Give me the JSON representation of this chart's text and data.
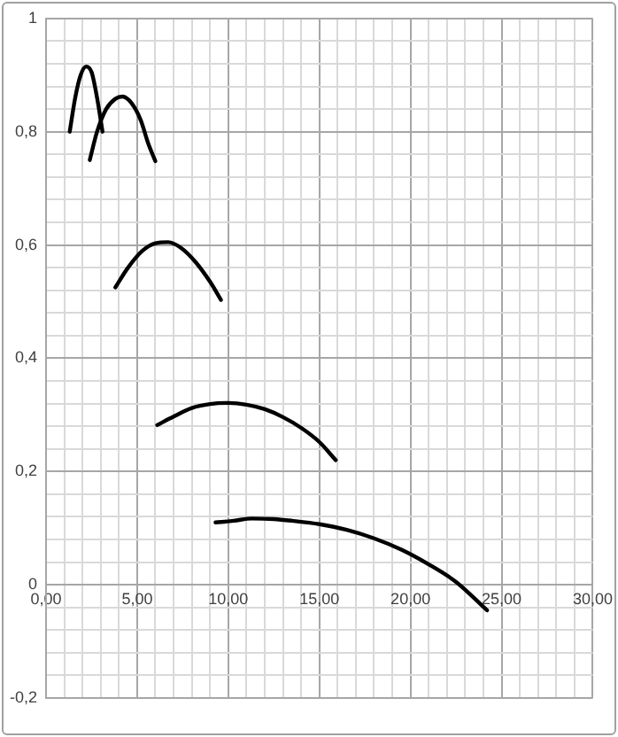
{
  "chart_data": {
    "type": "line",
    "marker": "none",
    "line_style": "solid",
    "grid": true,
    "legend": false,
    "xlim": [
      0,
      30
    ],
    "ylim": [
      -0.2,
      1
    ],
    "xticks": [
      {
        "value": 0,
        "label": "0,00"
      },
      {
        "value": 1,
        "label": null
      },
      {
        "value": 2,
        "label": null
      },
      {
        "value": 3,
        "label": null
      },
      {
        "value": 4,
        "label": null
      },
      {
        "value": 5,
        "label": "5,00"
      },
      {
        "value": 6,
        "label": null
      },
      {
        "value": 7,
        "label": null
      },
      {
        "value": 8,
        "label": null
      },
      {
        "value": 9,
        "label": null
      },
      {
        "value": 10,
        "label": "10,00"
      },
      {
        "value": 11,
        "label": null
      },
      {
        "value": 12,
        "label": null
      },
      {
        "value": 13,
        "label": null
      },
      {
        "value": 14,
        "label": null
      },
      {
        "value": 15,
        "label": "15,00"
      },
      {
        "value": 16,
        "label": null
      },
      {
        "value": 17,
        "label": null
      },
      {
        "value": 18,
        "label": null
      },
      {
        "value": 19,
        "label": null
      },
      {
        "value": 20,
        "label": "20,00"
      },
      {
        "value": 21,
        "label": null
      },
      {
        "value": 22,
        "label": null
      },
      {
        "value": 23,
        "label": null
      },
      {
        "value": 24,
        "label": null
      },
      {
        "value": 25,
        "label": "25,00"
      },
      {
        "value": 26,
        "label": null
      },
      {
        "value": 27,
        "label": null
      },
      {
        "value": 28,
        "label": null
      },
      {
        "value": 29,
        "label": null
      },
      {
        "value": 30,
        "label": "30,00"
      }
    ],
    "yticks": [
      {
        "value": -0.2,
        "label": "-0,2"
      },
      {
        "value": -0.16,
        "label": null
      },
      {
        "value": -0.12,
        "label": null
      },
      {
        "value": -0.08,
        "label": null
      },
      {
        "value": -0.04,
        "label": null
      },
      {
        "value": 0,
        "label": "0"
      },
      {
        "value": 0.04,
        "label": null
      },
      {
        "value": 0.08,
        "label": null
      },
      {
        "value": 0.12,
        "label": null
      },
      {
        "value": 0.16,
        "label": null
      },
      {
        "value": 0.2,
        "label": "0,2"
      },
      {
        "value": 0.24,
        "label": null
      },
      {
        "value": 0.28,
        "label": null
      },
      {
        "value": 0.32,
        "label": null
      },
      {
        "value": 0.36,
        "label": null
      },
      {
        "value": 0.4,
        "label": "0,4"
      },
      {
        "value": 0.44,
        "label": null
      },
      {
        "value": 0.48,
        "label": null
      },
      {
        "value": 0.52,
        "label": null
      },
      {
        "value": 0.56,
        "label": null
      },
      {
        "value": 0.6,
        "label": "0,6"
      },
      {
        "value": 0.64,
        "label": null
      },
      {
        "value": 0.68,
        "label": null
      },
      {
        "value": 0.72,
        "label": null
      },
      {
        "value": 0.76,
        "label": null
      },
      {
        "value": 0.8,
        "label": "0,8"
      },
      {
        "value": 0.84,
        "label": null
      },
      {
        "value": 0.88,
        "label": null
      },
      {
        "value": 0.92,
        "label": null
      },
      {
        "value": 0.96,
        "label": null
      },
      {
        "value": 1,
        "label": "1"
      }
    ],
    "series": [
      {
        "color": "#000000",
        "x": [
          1.3,
          1.6,
          1.9,
          2.2,
          2.5,
          2.8,
          3.1
        ],
        "values": [
          0.8,
          0.86,
          0.9,
          0.915,
          0.905,
          0.86,
          0.8
        ]
      },
      {
        "color": "#000000",
        "x": [
          2.4,
          2.8,
          3.3,
          3.8,
          4.2,
          4.7,
          5.2,
          5.6,
          6.0
        ],
        "values": [
          0.75,
          0.8,
          0.84,
          0.858,
          0.862,
          0.85,
          0.82,
          0.78,
          0.748
        ]
      },
      {
        "color": "#000000",
        "x": [
          3.8,
          4.5,
          5.3,
          6.0,
          6.7,
          7.4,
          8.2,
          9.0,
          9.6
        ],
        "values": [
          0.525,
          0.56,
          0.59,
          0.603,
          0.605,
          0.595,
          0.57,
          0.535,
          0.503
        ]
      },
      {
        "color": "#000000",
        "x": [
          6.1,
          7.0,
          8.0,
          9.0,
          10.0,
          11.0,
          12.0,
          13.0,
          14.0,
          15.0,
          15.9
        ],
        "values": [
          0.282,
          0.297,
          0.312,
          0.319,
          0.321,
          0.318,
          0.31,
          0.296,
          0.277,
          0.252,
          0.22
        ]
      },
      {
        "color": "#000000",
        "x": [
          9.3,
          10.3,
          11.3,
          12.5,
          13.5,
          15.0,
          16.5,
          18.0,
          19.5,
          21.0,
          22.5,
          24.2
        ],
        "values": [
          0.11,
          0.113,
          0.117,
          0.116,
          0.113,
          0.107,
          0.097,
          0.082,
          0.062,
          0.036,
          0.005,
          -0.045
        ]
      }
    ]
  }
}
